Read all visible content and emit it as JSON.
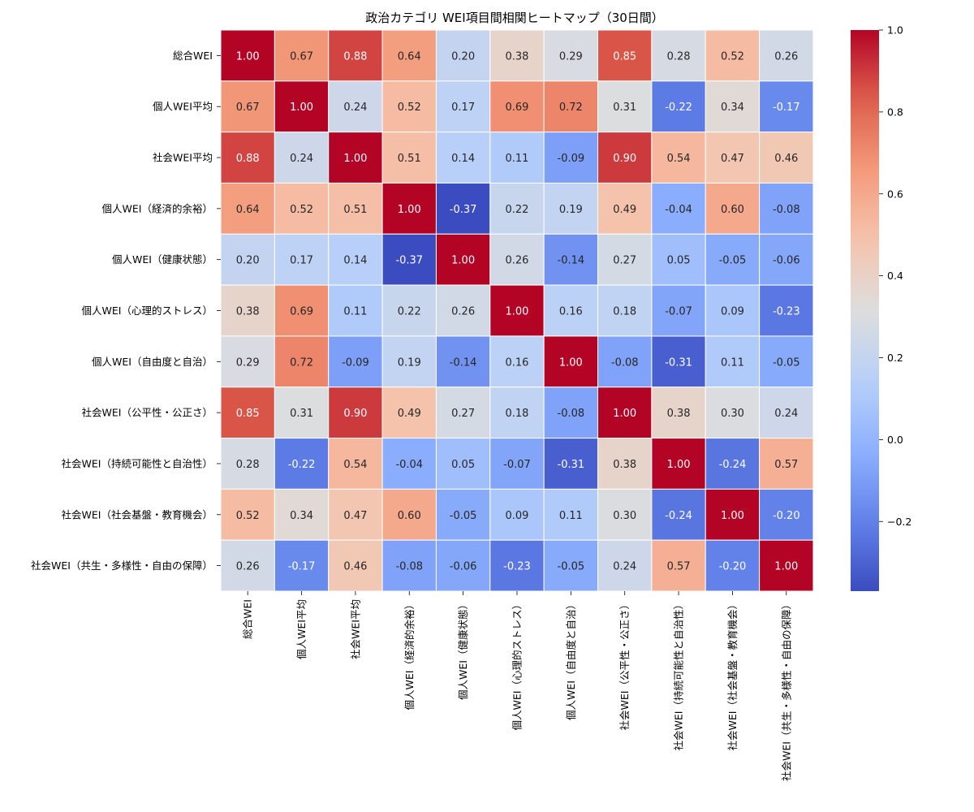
{
  "chart_data": {
    "type": "heatmap",
    "title": "政治カテゴリ WEI項目間相関ヒートマップ（30日間）",
    "labels": [
      "総合WEI",
      "個人WEI平均",
      "社会WEI平均",
      "個人WEI（経済的余裕）",
      "個人WEI（健康状態）",
      "個人WEI（心理的ストレス）",
      "個人WEI（自由度と自治）",
      "社会WEI（公平性・公正さ）",
      "社会WEI（持続可能性と自治性）",
      "社会WEI（社会基盤・教育機会）",
      "社会WEI（共生・多様性・自由の保障）"
    ],
    "values": [
      [
        1.0,
        0.67,
        0.88,
        0.64,
        0.2,
        0.38,
        0.29,
        0.85,
        0.28,
        0.52,
        0.26
      ],
      [
        0.67,
        1.0,
        0.24,
        0.52,
        0.17,
        0.69,
        0.72,
        0.31,
        -0.22,
        0.34,
        -0.17
      ],
      [
        0.88,
        0.24,
        1.0,
        0.51,
        0.14,
        0.11,
        -0.09,
        0.9,
        0.54,
        0.47,
        0.46
      ],
      [
        0.64,
        0.52,
        0.51,
        1.0,
        -0.37,
        0.22,
        0.19,
        0.49,
        -0.04,
        0.6,
        -0.08
      ],
      [
        0.2,
        0.17,
        0.14,
        -0.37,
        1.0,
        0.26,
        -0.14,
        0.27,
        0.05,
        -0.05,
        -0.06
      ],
      [
        0.38,
        0.69,
        0.11,
        0.22,
        0.26,
        1.0,
        0.16,
        0.18,
        -0.07,
        0.09,
        -0.23
      ],
      [
        0.29,
        0.72,
        -0.09,
        0.19,
        -0.14,
        0.16,
        1.0,
        -0.08,
        -0.31,
        0.11,
        -0.05
      ],
      [
        0.85,
        0.31,
        0.9,
        0.49,
        0.27,
        0.18,
        -0.08,
        1.0,
        0.38,
        0.3,
        0.24
      ],
      [
        0.28,
        -0.22,
        0.54,
        -0.04,
        0.05,
        -0.07,
        -0.31,
        0.38,
        1.0,
        -0.24,
        0.57
      ],
      [
        0.52,
        0.34,
        0.47,
        0.6,
        -0.05,
        0.09,
        0.11,
        0.3,
        -0.24,
        1.0,
        -0.2
      ],
      [
        0.26,
        -0.17,
        0.46,
        -0.08,
        -0.06,
        -0.23,
        -0.05,
        0.24,
        0.57,
        -0.2,
        1.0
      ]
    ],
    "vmin": -0.37,
    "vmax": 1.0,
    "colormap": "coolwarm",
    "colorbar_ticks": [
      1.0,
      0.8,
      0.6,
      0.4,
      0.2,
      0.0,
      -0.2
    ],
    "colorbar_tick_labels": [
      "1.0",
      "0.8",
      "0.6",
      "0.4",
      "0.2",
      "0.0",
      "−0.2"
    ],
    "colors": {
      "cool_end": "#3b4cc0",
      "mid": "#dddddd",
      "warm_end": "#b40426"
    }
  }
}
